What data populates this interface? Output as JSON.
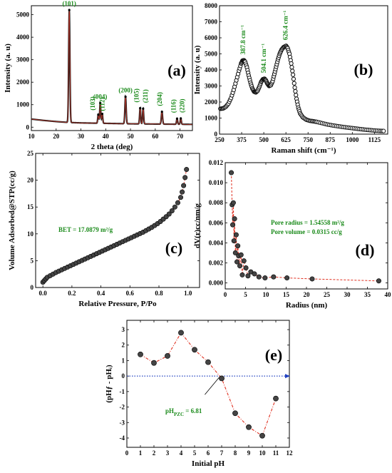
{
  "chart_data": [
    {
      "id": "a",
      "type": "line",
      "panel_label": "(a)",
      "xlabel": "2 theta (deg)",
      "ylabel": "Intensity (a. u)",
      "xlim": [
        10,
        75
      ],
      "ylim": [
        -150,
        5400
      ],
      "xticks": [
        10,
        20,
        30,
        40,
        50,
        60,
        70
      ],
      "yticks": [
        0,
        1000,
        2000,
        3000,
        4000,
        5000
      ],
      "baseline": [
        [
          10,
          360
        ],
        [
          15,
          300
        ],
        [
          20,
          250
        ],
        [
          25,
          210
        ],
        [
          30,
          190
        ],
        [
          35,
          180
        ],
        [
          40,
          170
        ],
        [
          45,
          160
        ],
        [
          50,
          150
        ],
        [
          55,
          145
        ],
        [
          60,
          140
        ],
        [
          65,
          135
        ],
        [
          70,
          130
        ],
        [
          75,
          125
        ]
      ],
      "peaks": [
        {
          "x": 25.3,
          "y": 5000,
          "w": 0.35,
          "label": "(101)"
        },
        {
          "x": 37.0,
          "y": 380,
          "w": 0.3,
          "label": "(103)"
        },
        {
          "x": 37.8,
          "y": 900,
          "w": 0.3,
          "label": "(004)"
        },
        {
          "x": 38.6,
          "y": 420,
          "w": 0.3,
          "label": "(112)"
        },
        {
          "x": 48.0,
          "y": 1200,
          "w": 0.35,
          "label": "(200)"
        },
        {
          "x": 53.9,
          "y": 700,
          "w": 0.3,
          "label": "(105)"
        },
        {
          "x": 55.1,
          "y": 680,
          "w": 0.3,
          "label": "(211)"
        },
        {
          "x": 62.7,
          "y": 550,
          "w": 0.35,
          "label": "(204)"
        },
        {
          "x": 68.8,
          "y": 250,
          "w": 0.3,
          "label": "(116)"
        },
        {
          "x": 70.3,
          "y": 260,
          "w": 0.3,
          "label": "(220)"
        }
      ]
    },
    {
      "id": "b",
      "type": "line",
      "panel_label": "(b)",
      "xlabel": "Raman shift (cm⁻¹)",
      "ylabel": "Intensity (a. u)",
      "xlim": [
        250,
        1200
      ],
      "ylim": [
        0,
        8000
      ],
      "xticks": [
        250,
        375,
        500,
        625,
        750,
        875,
        1000,
        1125
      ],
      "yticks": [
        0,
        1000,
        2000,
        3000,
        4000,
        5000,
        6000,
        7000,
        8000
      ],
      "peaks": [
        {
          "x": 387.8,
          "y": 4600,
          "label": "387.8 cm⁻¹"
        },
        {
          "x": 504.1,
          "y": 3450,
          "label": "504.1 cm⁻¹"
        },
        {
          "x": 626.4,
          "y": 5500,
          "label": "626.4 cm⁻¹"
        }
      ],
      "points": [
        [
          255,
          1580
        ],
        [
          270,
          1600
        ],
        [
          285,
          1700
        ],
        [
          300,
          1900
        ],
        [
          315,
          2250
        ],
        [
          330,
          2750
        ],
        [
          345,
          3350
        ],
        [
          360,
          3950
        ],
        [
          372,
          4400
        ],
        [
          380,
          4580
        ],
        [
          388,
          4600
        ],
        [
          395,
          4500
        ],
        [
          405,
          4150
        ],
        [
          415,
          3650
        ],
        [
          425,
          3200
        ],
        [
          435,
          2850
        ],
        [
          445,
          2650
        ],
        [
          455,
          2600
        ],
        [
          465,
          2700
        ],
        [
          475,
          2950
        ],
        [
          485,
          3250
        ],
        [
          495,
          3420
        ],
        [
          504,
          3450
        ],
        [
          512,
          3350
        ],
        [
          520,
          3150
        ],
        [
          530,
          3000
        ],
        [
          540,
          3050
        ],
        [
          550,
          3300
        ],
        [
          560,
          3750
        ],
        [
          570,
          4200
        ],
        [
          580,
          4650
        ],
        [
          590,
          5000
        ],
        [
          600,
          5250
        ],
        [
          612,
          5420
        ],
        [
          626,
          5500
        ],
        [
          635,
          5350
        ],
        [
          645,
          5000
        ],
        [
          655,
          4400
        ],
        [
          665,
          3700
        ],
        [
          675,
          2900
        ],
        [
          685,
          2200
        ],
        [
          695,
          1650
        ],
        [
          705,
          1300
        ],
        [
          720,
          1050
        ],
        [
          740,
          900
        ],
        [
          760,
          830
        ],
        [
          780,
          800
        ],
        [
          800,
          760
        ],
        [
          830,
          680
        ],
        [
          860,
          600
        ],
        [
          890,
          540
        ],
        [
          920,
          490
        ],
        [
          950,
          440
        ],
        [
          980,
          400
        ],
        [
          1010,
          360
        ],
        [
          1040,
          320
        ],
        [
          1070,
          280
        ],
        [
          1100,
          250
        ],
        [
          1130,
          220
        ],
        [
          1160,
          200
        ],
        [
          1185,
          190
        ]
      ]
    },
    {
      "id": "c",
      "type": "scatter",
      "panel_label": "(c)",
      "xlabel": "Relative Pressure, P/Po",
      "ylabel": "Volume Adsorbed@STP(cc/g)",
      "xlim": [
        -0.05,
        1.08
      ],
      "ylim": [
        0,
        25
      ],
      "xticks": [
        0.0,
        0.2,
        0.4,
        0.6,
        0.8,
        1.0
      ],
      "yticks": [
        0,
        5,
        10,
        15,
        20,
        25
      ],
      "annotation": "BET = 17.0879 m²/g",
      "points": [
        [
          0.0,
          1.0
        ],
        [
          0.01,
          1.3
        ],
        [
          0.02,
          1.6
        ],
        [
          0.03,
          1.9
        ],
        [
          0.05,
          2.2
        ],
        [
          0.07,
          2.5
        ],
        [
          0.09,
          2.8
        ],
        [
          0.11,
          3.05
        ],
        [
          0.13,
          3.3
        ],
        [
          0.15,
          3.55
        ],
        [
          0.17,
          3.8
        ],
        [
          0.19,
          4.05
        ],
        [
          0.21,
          4.3
        ],
        [
          0.23,
          4.55
        ],
        [
          0.25,
          4.8
        ],
        [
          0.27,
          5.05
        ],
        [
          0.29,
          5.3
        ],
        [
          0.31,
          5.55
        ],
        [
          0.33,
          5.8
        ],
        [
          0.35,
          6.05
        ],
        [
          0.37,
          6.3
        ],
        [
          0.39,
          6.55
        ],
        [
          0.41,
          6.8
        ],
        [
          0.43,
          7.05
        ],
        [
          0.45,
          7.3
        ],
        [
          0.47,
          7.55
        ],
        [
          0.49,
          7.8
        ],
        [
          0.51,
          8.05
        ],
        [
          0.53,
          8.3
        ],
        [
          0.55,
          8.55
        ],
        [
          0.57,
          8.8
        ],
        [
          0.59,
          9.05
        ],
        [
          0.61,
          9.3
        ],
        [
          0.63,
          9.55
        ],
        [
          0.65,
          9.8
        ],
        [
          0.67,
          10.05
        ],
        [
          0.69,
          10.3
        ],
        [
          0.71,
          10.6
        ],
        [
          0.73,
          10.9
        ],
        [
          0.75,
          11.2
        ],
        [
          0.77,
          11.55
        ],
        [
          0.79,
          11.9
        ],
        [
          0.81,
          12.3
        ],
        [
          0.83,
          12.75
        ],
        [
          0.85,
          13.2
        ],
        [
          0.87,
          13.7
        ],
        [
          0.89,
          14.3
        ],
        [
          0.91,
          15.0
        ],
        [
          0.93,
          15.8
        ],
        [
          0.95,
          16.8
        ],
        [
          0.96,
          17.8
        ],
        [
          0.97,
          19.0
        ],
        [
          0.98,
          20.5
        ],
        [
          0.99,
          22.0
        ]
      ]
    },
    {
      "id": "d",
      "type": "scatter",
      "panel_label": "(d)",
      "xlabel": "Radius (nm)",
      "ylabel": "dV(r)cc/nm/g",
      "xlim": [
        0,
        40
      ],
      "ylim": [
        -0.0006,
        0.012
      ],
      "xticks": [
        0,
        5,
        10,
        15,
        20,
        25,
        30,
        35,
        40
      ],
      "yticks": [
        0.0,
        0.002,
        0.004,
        0.006,
        0.008,
        0.01,
        0.012
      ],
      "ytick_labels": [
        "0.000",
        "0.002",
        "0.004",
        "0.006",
        "0.008",
        "0.010",
        "0.012"
      ],
      "annotations": [
        "Pore radius = 1.54558 m²/g",
        "Pore volume = 0.0315 cc/g"
      ],
      "points": [
        [
          1.5,
          0.011
        ],
        [
          1.7,
          0.0078
        ],
        [
          1.85,
          0.0058
        ],
        [
          2.0,
          0.008
        ],
        [
          2.15,
          0.0042
        ],
        [
          2.3,
          0.0064
        ],
        [
          2.5,
          0.003
        ],
        [
          2.7,
          0.0048
        ],
        [
          2.9,
          0.0021
        ],
        [
          3.1,
          0.0037
        ],
        [
          3.3,
          0.0027
        ],
        [
          3.6,
          0.0017
        ],
        [
          3.9,
          0.0028
        ],
        [
          4.2,
          0.0008
        ],
        [
          4.6,
          0.0022
        ],
        [
          5.1,
          0.0015
        ],
        [
          5.6,
          0.0007
        ],
        [
          6.3,
          0.0011
        ],
        [
          7.2,
          0.0009
        ],
        [
          8.3,
          0.0006
        ],
        [
          9.8,
          0.0005
        ],
        [
          11.9,
          0.0006
        ],
        [
          15.2,
          0.0005
        ],
        [
          21.4,
          0.0004
        ],
        [
          37.8,
          0.0002
        ]
      ]
    },
    {
      "id": "e",
      "type": "line",
      "panel_label": "(e)",
      "xlabel": "Initial pH",
      "ylabel": "(pHƒ - pHᵢ)",
      "xlim": [
        0,
        12
      ],
      "ylim": [
        -4.6,
        3.6
      ],
      "xticks": [
        0,
        1,
        2,
        3,
        4,
        5,
        6,
        7,
        8,
        9,
        10,
        11,
        12
      ],
      "yticks": [
        -4,
        -3,
        -2,
        -1,
        0,
        1,
        2,
        3
      ],
      "annotation": "pH",
      "annotation_sub": "PZC",
      "annotation_tail": " = 6.81",
      "points": [
        [
          1,
          1.4
        ],
        [
          2,
          0.85
        ],
        [
          3,
          1.3
        ],
        [
          4,
          2.8
        ],
        [
          5,
          1.7
        ],
        [
          6,
          0.9
        ],
        [
          7,
          -0.15
        ],
        [
          8,
          -2.4
        ],
        [
          9,
          -3.3
        ],
        [
          10,
          -3.85
        ],
        [
          11,
          -1.45
        ]
      ]
    }
  ]
}
